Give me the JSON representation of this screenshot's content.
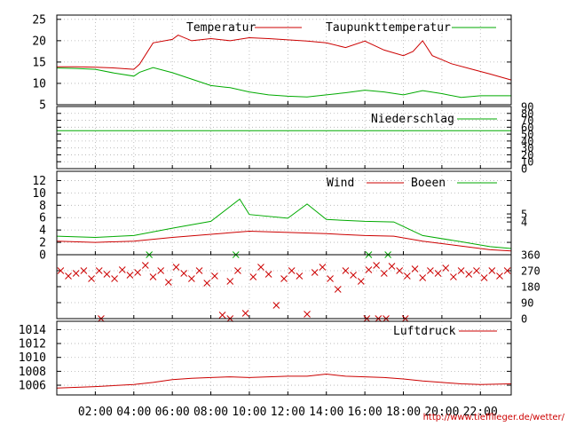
{
  "colors": {
    "red": "#cc0000",
    "green": "#00aa00",
    "grid": "#b0b0b0",
    "frame": "#000000"
  },
  "credit": "http://www.tiefflieger.de/wetter/",
  "x_labels": [
    "02:00",
    "04:00",
    "06:00",
    "08:00",
    "10:00",
    "12:00",
    "14:00",
    "16:00",
    "18:00",
    "20:00",
    "22:00"
  ],
  "chart_data": [
    {
      "type": "line",
      "x_unit": "hour",
      "xlim": [
        0,
        23.6
      ],
      "ylim": [
        5,
        26
      ],
      "yticks": [
        5,
        10,
        15,
        20,
        25
      ],
      "grid": true,
      "legend_position": "top",
      "series": [
        {
          "name": "Temperatur",
          "color": "#cc0000",
          "points": [
            [
              0,
              13.9
            ],
            [
              1,
              13.9
            ],
            [
              2,
              13.8
            ],
            [
              3,
              13.6
            ],
            [
              4,
              13.3
            ],
            [
              4.3,
              14.5
            ],
            [
              5,
              19.5
            ],
            [
              6,
              20.3
            ],
            [
              6.3,
              21.3
            ],
            [
              7,
              20.0
            ],
            [
              8,
              20.5
            ],
            [
              9,
              20.0
            ],
            [
              10,
              20.7
            ],
            [
              11,
              20.5
            ],
            [
              12,
              20.2
            ],
            [
              13,
              19.9
            ],
            [
              14,
              19.5
            ],
            [
              15,
              18.4
            ],
            [
              16,
              19.9
            ],
            [
              17,
              17.8
            ],
            [
              18,
              16.5
            ],
            [
              18.5,
              17.5
            ],
            [
              19,
              20.0
            ],
            [
              19.5,
              16.5
            ],
            [
              20.5,
              14.6
            ],
            [
              21.5,
              13.4
            ],
            [
              22.5,
              12.2
            ],
            [
              23.6,
              10.8
            ]
          ]
        },
        {
          "name": "Taupunkttemperatur",
          "color": "#00aa00",
          "points": [
            [
              0,
              13.6
            ],
            [
              1,
              13.5
            ],
            [
              2,
              13.3
            ],
            [
              3,
              12.4
            ],
            [
              4,
              11.7
            ],
            [
              4.3,
              12.6
            ],
            [
              5,
              13.7
            ],
            [
              6,
              12.5
            ],
            [
              7,
              11.0
            ],
            [
              8,
              9.5
            ],
            [
              9,
              9.0
            ],
            [
              10,
              8.0
            ],
            [
              11,
              7.3
            ],
            [
              12,
              7.0
            ],
            [
              13,
              6.8
            ],
            [
              14,
              7.3
            ],
            [
              15,
              7.8
            ],
            [
              16,
              8.4
            ],
            [
              17,
              8.0
            ],
            [
              18,
              7.3
            ],
            [
              19,
              8.3
            ],
            [
              20,
              7.6
            ],
            [
              21,
              6.7
            ],
            [
              22,
              7.1
            ],
            [
              23.6,
              7.1
            ]
          ]
        }
      ]
    },
    {
      "type": "line",
      "x_unit": "hour",
      "xlim": [
        0,
        23.6
      ],
      "ylim": [
        0,
        90
      ],
      "yticks": [
        0,
        10,
        20,
        30,
        40,
        50,
        60,
        70,
        80,
        90
      ],
      "grid": true,
      "legend_position": "top",
      "series": [
        {
          "name": "Niederschlag",
          "color": "#00aa00",
          "points": [
            [
              0,
              55
            ],
            [
              23.6,
              55
            ]
          ]
        }
      ]
    },
    {
      "type": "line",
      "x_unit": "hour",
      "xlim": [
        0,
        23.6
      ],
      "ylim": [
        0,
        13.5
      ],
      "yticks": [
        0,
        2,
        4,
        6,
        8,
        10,
        12
      ],
      "right_yticks": [
        {
          "value": 6.6,
          "label": "5"
        },
        {
          "value": 5.3,
          "label": "4"
        }
      ],
      "grid": true,
      "legend_position": "top",
      "series": [
        {
          "name": "Wind",
          "color": "#cc0000",
          "points": [
            [
              0,
              2.2
            ],
            [
              2,
              2.0
            ],
            [
              4,
              2.2
            ],
            [
              6,
              2.8
            ],
            [
              8,
              3.3
            ],
            [
              10,
              3.8
            ],
            [
              12,
              3.6
            ],
            [
              14,
              3.4
            ],
            [
              16,
              3.1
            ],
            [
              17.5,
              3.0
            ],
            [
              19,
              2.2
            ],
            [
              21,
              1.4
            ],
            [
              22.5,
              0.8
            ],
            [
              23.6,
              0.6
            ]
          ]
        },
        {
          "name": "Boeen",
          "color": "#00aa00",
          "points": [
            [
              0,
              3.0
            ],
            [
              2,
              2.8
            ],
            [
              4,
              3.1
            ],
            [
              6,
              4.3
            ],
            [
              8,
              5.4
            ],
            [
              9.5,
              9.0
            ],
            [
              10,
              6.5
            ],
            [
              12,
              5.9
            ],
            [
              13,
              8.2
            ],
            [
              14,
              5.7
            ],
            [
              16,
              5.4
            ],
            [
              17.5,
              5.3
            ],
            [
              19,
              3.1
            ],
            [
              21,
              2.1
            ],
            [
              22.5,
              1.3
            ],
            [
              23.6,
              1.0
            ]
          ]
        }
      ]
    },
    {
      "type": "scatter",
      "x_unit": "hour",
      "xlim": [
        0,
        23.6
      ],
      "ylim": [
        0,
        360
      ],
      "yticks": [
        0,
        90,
        180,
        270,
        360
      ],
      "grid": true,
      "series": [
        {
          "color": "#cc0000",
          "marker": "x",
          "points": [
            [
              0.2,
              270
            ],
            [
              0.6,
              240
            ],
            [
              1.0,
              255
            ],
            [
              1.4,
              270
            ],
            [
              1.8,
              225
            ],
            [
              2.2,
              270
            ],
            [
              2.6,
              250
            ],
            [
              3.0,
              225
            ],
            [
              3.4,
              275
            ],
            [
              3.8,
              245
            ],
            [
              4.2,
              260
            ],
            [
              4.6,
              300
            ],
            [
              5.0,
              235
            ],
            [
              5.4,
              270
            ],
            [
              5.8,
              205
            ],
            [
              6.2,
              290
            ],
            [
              6.6,
              255
            ],
            [
              7.0,
              225
            ],
            [
              7.4,
              270
            ],
            [
              7.8,
              200
            ],
            [
              8.2,
              240
            ],
            [
              8.6,
              20
            ],
            [
              9.0,
              210
            ],
            [
              9.4,
              270
            ],
            [
              9.8,
              30
            ],
            [
              10.2,
              235
            ],
            [
              10.6,
              290
            ],
            [
              11.0,
              250
            ],
            [
              11.4,
              75
            ],
            [
              11.8,
              225
            ],
            [
              12.2,
              270
            ],
            [
              12.6,
              240
            ],
            [
              13.0,
              25
            ],
            [
              13.4,
              260
            ],
            [
              13.8,
              290
            ],
            [
              14.2,
              225
            ],
            [
              14.6,
              165
            ],
            [
              15.0,
              270
            ],
            [
              15.4,
              245
            ],
            [
              15.8,
              210
            ],
            [
              16.2,
              275
            ],
            [
              16.6,
              300
            ],
            [
              17.0,
              255
            ],
            [
              17.4,
              295
            ],
            [
              17.8,
              270
            ],
            [
              18.2,
              240
            ],
            [
              18.6,
              280
            ],
            [
              19.0,
              230
            ],
            [
              19.4,
              270
            ],
            [
              19.8,
              255
            ],
            [
              20.2,
              285
            ],
            [
              20.6,
              235
            ],
            [
              21.0,
              270
            ],
            [
              21.4,
              250
            ],
            [
              21.8,
              270
            ],
            [
              22.2,
              230
            ],
            [
              22.6,
              270
            ],
            [
              23.0,
              240
            ],
            [
              23.4,
              270
            ],
            [
              2.3,
              0
            ],
            [
              9.0,
              0
            ],
            [
              16.1,
              0
            ],
            [
              16.7,
              0
            ],
            [
              17.1,
              0
            ],
            [
              18.1,
              0
            ]
          ]
        },
        {
          "color": "#00aa00",
          "marker": "x",
          "points": [
            [
              4.8,
              360
            ],
            [
              9.3,
              360
            ],
            [
              16.2,
              360
            ],
            [
              17.2,
              360
            ]
          ]
        }
      ]
    },
    {
      "type": "line",
      "x_unit": "hour",
      "xlim": [
        0,
        23.6
      ],
      "ylim": [
        1004.6,
        1015.2
      ],
      "yticks": [
        1006,
        1008,
        1010,
        1012,
        1014
      ],
      "grid": true,
      "legend_position": "top",
      "series": [
        {
          "name": "Luftdruck",
          "color": "#cc0000",
          "points": [
            [
              0,
              1005.6
            ],
            [
              2,
              1005.8
            ],
            [
              4,
              1006.1
            ],
            [
              5,
              1006.4
            ],
            [
              6,
              1006.8
            ],
            [
              7,
              1007.0
            ],
            [
              8,
              1007.1
            ],
            [
              9,
              1007.2
            ],
            [
              10,
              1007.1
            ],
            [
              11,
              1007.2
            ],
            [
              12,
              1007.3
            ],
            [
              13,
              1007.3
            ],
            [
              14,
              1007.6
            ],
            [
              15,
              1007.3
            ],
            [
              16,
              1007.2
            ],
            [
              17,
              1007.1
            ],
            [
              18,
              1006.9
            ],
            [
              19,
              1006.6
            ],
            [
              20,
              1006.4
            ],
            [
              21,
              1006.2
            ],
            [
              22,
              1006.1
            ],
            [
              23.6,
              1006.2
            ]
          ]
        }
      ]
    }
  ]
}
